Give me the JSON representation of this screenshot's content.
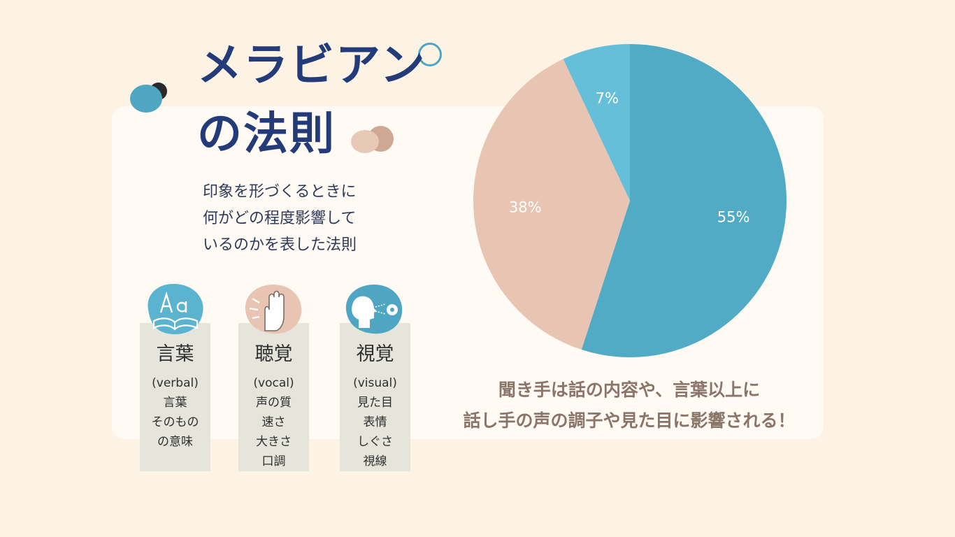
{
  "title": {
    "line1": "メラビアン",
    "line2": "の法則"
  },
  "subtitle": [
    "印象を形づくるときに",
    "何がどの程度影響して",
    "いるのかを表した法則"
  ],
  "cards": [
    {
      "icon": "book-letters-icon",
      "head": "言葉",
      "lines": [
        "(verbal)",
        "言葉",
        "そのもの",
        "の意味"
      ]
    },
    {
      "icon": "hand-ear-icon",
      "head": "聴覚",
      "lines": [
        "(vocal)",
        "声の質",
        "速さ",
        "大きさ",
        "口調"
      ]
    },
    {
      "icon": "face-eye-icon",
      "head": "視覚",
      "lines": [
        "(visual)",
        "見た目",
        "表情",
        "しぐさ",
        "視線"
      ]
    }
  ],
  "chart_data": {
    "type": "pie",
    "slices": [
      {
        "label": "55%",
        "value": 55,
        "color": "#52abc5"
      },
      {
        "label": "38%",
        "value": 38,
        "color": "#e8c5b2"
      },
      {
        "label": "7%",
        "value": 7,
        "color": "#65bfd8"
      }
    ]
  },
  "caption": [
    "聞き手は話の内容や、言葉以上に",
    "話し手の声の調子や見た目に影響される！"
  ],
  "colors": {
    "accent_blue": "#52abc5",
    "accent_peach": "#e8c5b2",
    "title_navy": "#243b7a",
    "background": "#fdf3e5"
  }
}
